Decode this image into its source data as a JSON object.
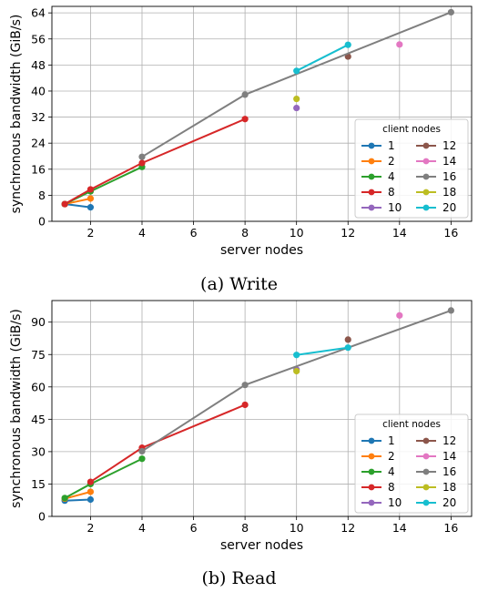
{
  "figure": {
    "caption_write": "(a) Write",
    "caption_read": "(b) Read"
  },
  "chart_data": [
    {
      "type": "line",
      "panel": "write",
      "xlabel": "server nodes",
      "ylabel": "synchronous bandwidth (GiB/s)",
      "xlim": [
        0.5,
        16.8
      ],
      "ylim": [
        0,
        66
      ],
      "xticks": [
        2,
        4,
        6,
        8,
        10,
        12,
        14,
        16
      ],
      "yticks": [
        0,
        8,
        16,
        24,
        32,
        40,
        48,
        56,
        64
      ],
      "grid": true,
      "legend": {
        "title": "client nodes",
        "placement": "lower-right",
        "columns": 2
      },
      "series": [
        {
          "name": "1",
          "color": "#1f77b4",
          "points": [
            [
              1,
              5.3
            ],
            [
              2,
              4.3
            ]
          ]
        },
        {
          "name": "2",
          "color": "#ff7f0e",
          "points": [
            [
              1,
              5.3
            ],
            [
              2,
              7.0
            ]
          ]
        },
        {
          "name": "4",
          "color": "#2ca02c",
          "points": [
            [
              1,
              5.3
            ],
            [
              2,
              9.2
            ],
            [
              4,
              16.7
            ]
          ]
        },
        {
          "name": "8",
          "color": "#d62728",
          "points": [
            [
              1,
              5.3
            ],
            [
              2,
              9.8
            ],
            [
              4,
              17.9
            ],
            [
              8,
              31.4
            ]
          ]
        },
        {
          "name": "10",
          "color": "#9467bd",
          "points": [
            [
              10,
              34.8
            ]
          ]
        },
        {
          "name": "12",
          "color": "#8c564b",
          "points": [
            [
              12,
              50.6
            ]
          ]
        },
        {
          "name": "14",
          "color": "#e377c2",
          "points": [
            [
              14,
              54.3
            ]
          ]
        },
        {
          "name": "16",
          "color": "#7f7f7f",
          "points": [
            [
              4,
              19.8
            ],
            [
              8,
              38.9
            ],
            [
              16,
              64.2
            ]
          ]
        },
        {
          "name": "18",
          "color": "#bcbd22",
          "points": [
            [
              10,
              37.6
            ]
          ]
        },
        {
          "name": "20",
          "color": "#17becf",
          "points": [
            [
              10,
              46.2
            ],
            [
              12,
              54.2
            ]
          ]
        }
      ]
    },
    {
      "type": "line",
      "panel": "read",
      "xlabel": "server nodes",
      "ylabel": "synchronous bandwidth (GiB/s)",
      "xlim": [
        0.5,
        16.8
      ],
      "ylim": [
        0,
        100
      ],
      "xticks": [
        2,
        4,
        6,
        8,
        10,
        12,
        14,
        16
      ],
      "yticks": [
        0,
        15,
        30,
        45,
        60,
        75,
        90
      ],
      "grid": true,
      "legend": {
        "title": "client nodes",
        "placement": "lower-right",
        "columns": 2
      },
      "series": [
        {
          "name": "1",
          "color": "#1f77b4",
          "points": [
            [
              1,
              7.3
            ],
            [
              2,
              7.8
            ]
          ]
        },
        {
          "name": "2",
          "color": "#ff7f0e",
          "points": [
            [
              1,
              8.2
            ],
            [
              2,
              11.4
            ]
          ]
        },
        {
          "name": "4",
          "color": "#2ca02c",
          "points": [
            [
              1,
              8.5
            ],
            [
              2,
              15.0
            ],
            [
              4,
              26.7
            ]
          ]
        },
        {
          "name": "8",
          "color": "#d62728",
          "points": [
            [
              2,
              16.0
            ],
            [
              4,
              31.8
            ],
            [
              8,
              51.7
            ]
          ]
        },
        {
          "name": "10",
          "color": "#9467bd",
          "points": [
            [
              10,
              68.0
            ]
          ]
        },
        {
          "name": "12",
          "color": "#8c564b",
          "points": [
            [
              12,
              81.9
            ]
          ]
        },
        {
          "name": "14",
          "color": "#e377c2",
          "points": [
            [
              14,
              93.1
            ]
          ]
        },
        {
          "name": "16",
          "color": "#7f7f7f",
          "points": [
            [
              4,
              30.2
            ],
            [
              8,
              60.9
            ],
            [
              16,
              95.4
            ]
          ]
        },
        {
          "name": "18",
          "color": "#bcbd22",
          "points": [
            [
              10,
              67.3
            ]
          ]
        },
        {
          "name": "20",
          "color": "#17becf",
          "points": [
            [
              10,
              74.8
            ],
            [
              12,
              78.2
            ]
          ]
        }
      ]
    }
  ]
}
